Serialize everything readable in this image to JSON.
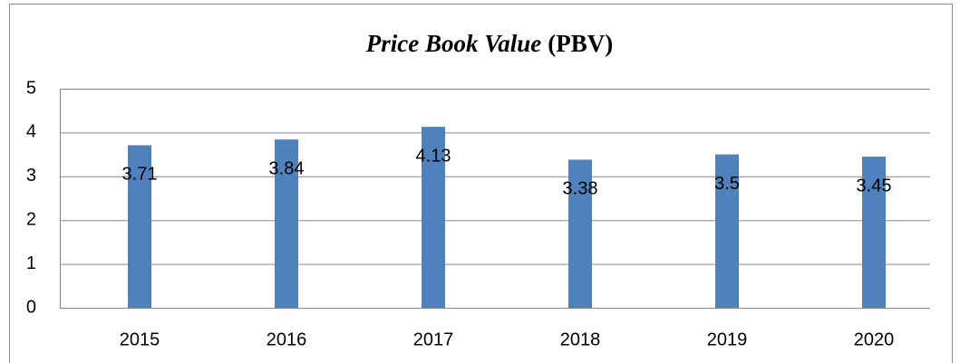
{
  "chart_data": {
    "type": "bar",
    "title": [
      "Price Book Value",
      "(PBV)"
    ],
    "categories": [
      "2015",
      "2016",
      "2017",
      "2018",
      "2019",
      "2020"
    ],
    "values": [
      3.71,
      3.84,
      4.13,
      3.38,
      3.5,
      3.45
    ],
    "color": "#4f81bd",
    "ylim": [
      0,
      5
    ],
    "yticks": [
      0,
      1,
      2,
      3,
      4,
      5
    ],
    "grid": true
  }
}
